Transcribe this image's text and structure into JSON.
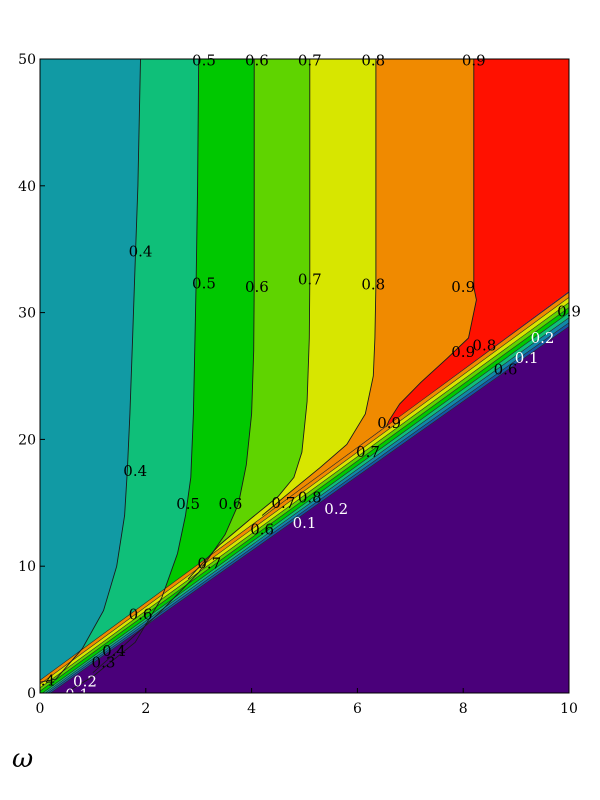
{
  "chart_data": {
    "type": "contour",
    "title": "",
    "xlabel": "ω",
    "ylabel": "",
    "xlim": [
      0,
      10
    ],
    "ylim": [
      0,
      50
    ],
    "x_ticks": [
      "0",
      "2",
      "4",
      "6",
      "8",
      "10"
    ],
    "y_ticks": [
      "0",
      "10",
      "20",
      "30",
      "40",
      "50"
    ],
    "grid": false,
    "fill_colors": [
      "#4a007a",
      "#1a1f86",
      "#1457a7",
      "#1188a8",
      "#119aa4",
      "#0fbf79",
      "#00c800",
      "#5fd400",
      "#d7e600",
      "#f08a00",
      "#ff1100"
    ],
    "contour_levels": [
      0.1,
      0.2,
      0.3,
      0.4,
      0.5,
      0.6,
      0.7,
      0.8,
      0.9
    ],
    "boundary_lines": [
      {
        "level": 0.1,
        "points": [
          [
            0.2,
            0
          ],
          [
            10,
            28.9
          ]
        ]
      },
      {
        "level": 0.2,
        "points": [
          [
            0.15,
            0
          ],
          [
            10,
            29.2
          ]
        ]
      },
      {
        "level": 0.3,
        "points": [
          [
            0.1,
            0
          ],
          [
            10,
            29.6
          ]
        ]
      },
      {
        "level": 0.4,
        "points": [
          [
            0.05,
            0
          ],
          [
            10,
            30
          ]
        ]
      },
      {
        "level": 0.5,
        "points": [
          [
            0,
            0.15
          ],
          [
            10,
            30.4
          ]
        ]
      },
      {
        "level": 0.6,
        "points": [
          [
            0,
            0.4
          ],
          [
            10,
            30.8
          ]
        ]
      },
      {
        "level": 0.7,
        "points": [
          [
            0,
            0.7
          ],
          [
            10,
            31.2
          ]
        ]
      },
      {
        "level": 0.8,
        "points": [
          [
            0,
            1.0
          ],
          [
            10,
            31.6
          ]
        ]
      }
    ],
    "vertical_contours": [
      {
        "level": 0.4,
        "points": [
          [
            1.9,
            50
          ],
          [
            1.85,
            40
          ],
          [
            1.8,
            34
          ],
          [
            1.75,
            28
          ],
          [
            1.7,
            22
          ],
          [
            1.65,
            17.5
          ],
          [
            1.6,
            14
          ],
          [
            1.45,
            10
          ],
          [
            1.2,
            6.5
          ],
          [
            0.8,
            3.5
          ],
          [
            0.3,
            1.1
          ],
          [
            0,
            0.85
          ]
        ]
      },
      {
        "level": 0.5,
        "points": [
          [
            3.0,
            50
          ],
          [
            2.98,
            40
          ],
          [
            2.95,
            32.3
          ],
          [
            2.93,
            28
          ],
          [
            2.9,
            22
          ],
          [
            2.85,
            17
          ],
          [
            2.75,
            14
          ],
          [
            2.6,
            11
          ],
          [
            2.3,
            7.5
          ],
          [
            1.8,
            4.0
          ],
          [
            1.0,
            1.3
          ],
          [
            0.6,
            0.3
          ]
        ]
      },
      {
        "level": 0.6,
        "points": [
          [
            4.05,
            50
          ],
          [
            4.05,
            40
          ],
          [
            4.05,
            32
          ],
          [
            4.04,
            27
          ],
          [
            4.0,
            22
          ],
          [
            3.9,
            18
          ],
          [
            3.75,
            14.9
          ],
          [
            3.5,
            12.5
          ],
          [
            3.0,
            9.5
          ],
          [
            2.3,
            6.5
          ],
          [
            1.6,
            3.8
          ],
          [
            1.0,
            1.6
          ]
        ]
      },
      {
        "level": 0.7,
        "points": [
          [
            5.1,
            50
          ],
          [
            5.1,
            40
          ],
          [
            5.1,
            32.5
          ],
          [
            5.09,
            28
          ],
          [
            5.05,
            23
          ],
          [
            4.95,
            19
          ],
          [
            4.8,
            17
          ],
          [
            4.5,
            15.5
          ],
          [
            4.0,
            13.8
          ],
          [
            3.4,
            11.7
          ],
          [
            2.8,
            9.0
          ]
        ]
      },
      {
        "level": 0.8,
        "points": [
          [
            6.35,
            50
          ],
          [
            6.35,
            40
          ],
          [
            6.35,
            32.2
          ],
          [
            6.33,
            28
          ],
          [
            6.3,
            25
          ],
          [
            6.15,
            22
          ],
          [
            5.8,
            19.6
          ],
          [
            5.3,
            17.8
          ],
          [
            4.6,
            15.4
          ],
          [
            4.2,
            14.0
          ]
        ]
      },
      {
        "level": 0.9,
        "points": [
          [
            8.2,
            50
          ],
          [
            8.2,
            40
          ],
          [
            8.2,
            32
          ],
          [
            8.25,
            31
          ],
          [
            8.1,
            28
          ],
          [
            7.7,
            26.4
          ],
          [
            7.2,
            24.5
          ],
          [
            6.8,
            22.8
          ],
          [
            6.6,
            21.5
          ],
          [
            6.55,
            21.0
          ]
        ]
      }
    ],
    "contour_labels": [
      {
        "text": "0.4",
        "x": 1.9,
        "y": 34.8,
        "color": "#000000"
      },
      {
        "text": "0.4",
        "x": 1.8,
        "y": 17.5,
        "color": "#000000"
      },
      {
        "text": "0.5",
        "x": 3.1,
        "y": 32.3,
        "color": "#000000"
      },
      {
        "text": "0.5",
        "x": 2.8,
        "y": 14.9,
        "color": "#000000"
      },
      {
        "text": "0.6",
        "x": 4.1,
        "y": 32.0,
        "color": "#000000"
      },
      {
        "text": "0.6",
        "x": 3.6,
        "y": 14.9,
        "color": "#000000"
      },
      {
        "text": "0.6",
        "x": 1.9,
        "y": 6.2,
        "color": "#000000"
      },
      {
        "text": "0.7",
        "x": 5.1,
        "y": 32.6,
        "color": "#000000"
      },
      {
        "text": "0.7",
        "x": 4.6,
        "y": 15.0,
        "color": "#000000"
      },
      {
        "text": "0.7",
        "x": 3.2,
        "y": 10.2,
        "color": "#000000"
      },
      {
        "text": "0.7",
        "x": 6.2,
        "y": 19.0,
        "color": "#000000"
      },
      {
        "text": "0.8",
        "x": 6.3,
        "y": 32.2,
        "color": "#000000"
      },
      {
        "text": "0.8",
        "x": 5.1,
        "y": 15.4,
        "color": "#000000"
      },
      {
        "text": "0.8",
        "x": 8.4,
        "y": 27.4,
        "color": "#000000"
      },
      {
        "text": "0.9",
        "x": 8.0,
        "y": 32.0,
        "color": "#000000"
      },
      {
        "text": "0.9",
        "x": 6.6,
        "y": 21.3,
        "color": "#000000"
      },
      {
        "text": "0.9",
        "x": 8.0,
        "y": 26.9,
        "color": "#000000"
      },
      {
        "text": "0.5",
        "x": 3.1,
        "y": 49.9,
        "color": "#000000"
      },
      {
        "text": "0.6",
        "x": 4.1,
        "y": 49.9,
        "color": "#000000"
      },
      {
        "text": "0.7",
        "x": 5.1,
        "y": 49.9,
        "color": "#000000"
      },
      {
        "text": "0.8",
        "x": 6.3,
        "y": 49.9,
        "color": "#000000"
      },
      {
        "text": "0.9",
        "x": 8.2,
        "y": 49.9,
        "color": "#000000"
      },
      {
        "text": "0.6",
        "x": 4.2,
        "y": 12.9,
        "color": "#000000"
      },
      {
        "text": "0.6",
        "x": 8.8,
        "y": 25.5,
        "color": "#000000"
      },
      {
        "text": "0.4",
        "x": 1.4,
        "y": 3.3,
        "color": "#000000"
      },
      {
        "text": "0.3",
        "x": 1.2,
        "y": 2.4,
        "color": "#000000"
      },
      {
        "text": "0.2",
        "x": 5.6,
        "y": 14.5,
        "color": "#ffffff"
      },
      {
        "text": "0.1",
        "x": 5.0,
        "y": 13.4,
        "color": "#ffffff"
      },
      {
        "text": "0.2",
        "x": 0.85,
        "y": 0.9,
        "color": "#ffffff"
      },
      {
        "text": "0.1",
        "x": 0.7,
        "y": -0.1,
        "color": "#ffffff"
      },
      {
        "text": "0.2",
        "x": 9.5,
        "y": 28.0,
        "color": "#ffffff"
      },
      {
        "text": "0.1",
        "x": 9.2,
        "y": 26.4,
        "color": "#ffffff"
      },
      {
        "text": "0.9",
        "x": 10.0,
        "y": 30.1,
        "color": "#000000"
      },
      {
        "text": ".4",
        "x": 0.15,
        "y": 1.0,
        "color": "#000000"
      }
    ]
  }
}
